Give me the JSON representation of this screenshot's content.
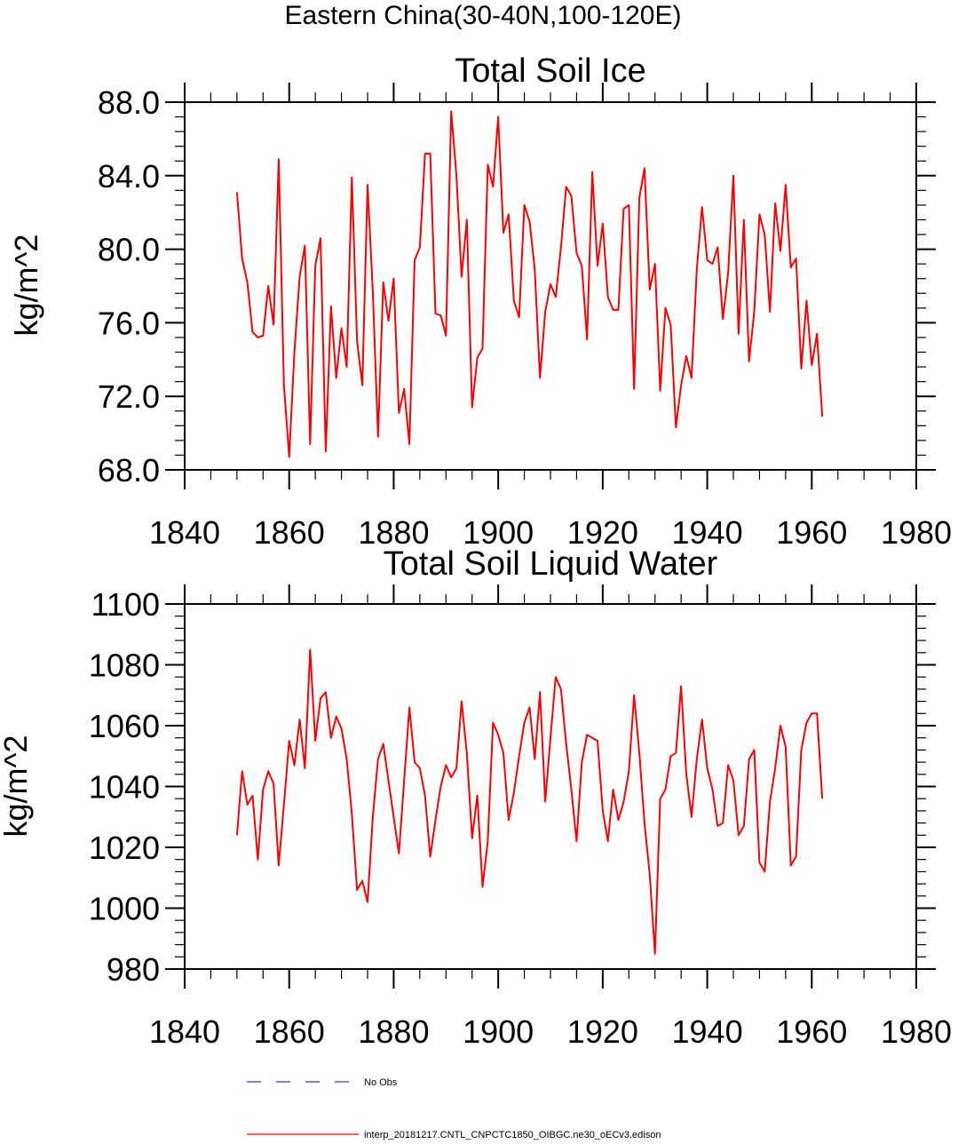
{
  "figure": {
    "title": "Eastern China(30-40N,100-120E)",
    "colors": {
      "series": "#ff0000",
      "obs": "#3333ff",
      "axis": "#000000"
    }
  },
  "chart_data": [
    {
      "type": "line",
      "title": "Total Soil Ice",
      "xlabel": "",
      "ylabel": "kg/m^2",
      "xlim": [
        1840,
        1980
      ],
      "ylim": [
        68,
        88
      ],
      "x_ticks": [
        1840,
        1860,
        1880,
        1900,
        1920,
        1940,
        1960,
        1980
      ],
      "y_ticks": [
        "68.0",
        "72.0",
        "76.0",
        "80.0",
        "84.0",
        "88.0"
      ],
      "grid": false,
      "series": [
        {
          "name": "interp_20181217.CNTL_CNPCTC1850_OIBGC.ne30_oECv3.edison",
          "x_start": 1850,
          "x_step": 1,
          "values": [
            83.1,
            79.5,
            78.2,
            75.5,
            75.2,
            75.3,
            78.0,
            75.9,
            84.9,
            72.6,
            68.7,
            74.4,
            78.5,
            80.2,
            69.4,
            79.1,
            80.6,
            69.0,
            76.9,
            73.0,
            75.7,
            73.6,
            83.9,
            75.0,
            72.6,
            83.5,
            77.7,
            69.8,
            78.2,
            76.1,
            78.4,
            71.1,
            72.4,
            69.4,
            79.4,
            80.1,
            85.2,
            85.2,
            76.5,
            76.4,
            75.3,
            87.5,
            84.0,
            78.5,
            81.6,
            71.4,
            74.1,
            74.6,
            84.6,
            83.4,
            87.2,
            80.9,
            81.9,
            77.2,
            76.3,
            82.4,
            81.5,
            78.9,
            73.0,
            76.6,
            78.1,
            77.4,
            80.1,
            83.4,
            82.9,
            79.8,
            79.1,
            75.1,
            84.2,
            79.1,
            81.4,
            77.4,
            76.7,
            76.7,
            82.2,
            82.4,
            72.4,
            82.8,
            84.4,
            77.8,
            79.2,
            72.3,
            76.8,
            75.9,
            70.3,
            72.6,
            74.2,
            73.0,
            78.9,
            82.3,
            79.4,
            79.2,
            80.1,
            76.2,
            78.7,
            84.0,
            75.4,
            81.6,
            73.9,
            76.6,
            81.9,
            80.8,
            76.6,
            82.5,
            79.9,
            83.5,
            79.0,
            79.5,
            73.5,
            77.2,
            73.7,
            75.4,
            70.9
          ]
        }
      ]
    },
    {
      "type": "line",
      "title": "Total Soil Liquid Water",
      "xlabel": "",
      "ylabel": "kg/m^2",
      "xlim": [
        1840,
        1980
      ],
      "ylim": [
        980,
        1100
      ],
      "x_ticks": [
        1840,
        1860,
        1880,
        1900,
        1920,
        1940,
        1960,
        1980
      ],
      "y_ticks": [
        "980",
        "1000",
        "1020",
        "1040",
        "1060",
        "1080",
        "1100"
      ],
      "grid": false,
      "series": [
        {
          "name": "interp_20181217.CNTL_CNPCTC1850_OIBGC.ne30_oECv3.edison",
          "x_start": 1850,
          "x_step": 1,
          "values": [
            1024,
            1045,
            1034,
            1037,
            1016,
            1039,
            1045,
            1041,
            1014,
            1034,
            1055,
            1047,
            1062,
            1046,
            1085,
            1055,
            1069,
            1071,
            1056,
            1063,
            1059,
            1049,
            1031,
            1006,
            1009,
            1002,
            1030,
            1049,
            1054,
            1042,
            1030,
            1018,
            1042,
            1066,
            1048,
            1046,
            1037,
            1017,
            1029,
            1040,
            1047,
            1043,
            1046,
            1068,
            1051,
            1023,
            1037,
            1007,
            1022,
            1061,
            1057,
            1051,
            1029,
            1038,
            1050,
            1061,
            1066,
            1049,
            1071,
            1035,
            1056,
            1076,
            1072,
            1054,
            1039,
            1022,
            1048,
            1057,
            1056,
            1055,
            1032,
            1022,
            1039,
            1029,
            1035,
            1045,
            1070,
            1051,
            1028,
            1011,
            985,
            1036,
            1039,
            1050,
            1051,
            1073,
            1044,
            1030,
            1049,
            1062,
            1046,
            1039,
            1027,
            1028,
            1047,
            1042,
            1024,
            1027,
            1049,
            1052,
            1015,
            1012,
            1035,
            1046,
            1060,
            1053,
            1014,
            1017,
            1052,
            1061,
            1064,
            1064,
            1036
          ]
        }
      ]
    }
  ],
  "legend": {
    "entries": [
      {
        "label": "No Obs",
        "style": "dashed",
        "color": "#3333ff"
      },
      {
        "label": "interp_20181217.CNTL_CNPCTC1850_OIBGC.ne30_oECv3.edison",
        "style": "solid",
        "color": "#ff0000"
      }
    ]
  }
}
